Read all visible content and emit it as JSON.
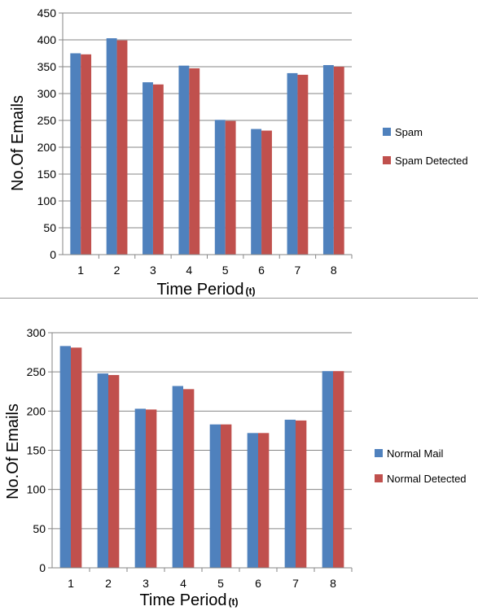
{
  "colors": {
    "series_a": "#4F81BD",
    "series_b": "#C0504D",
    "axis": "#868686",
    "grid": "#868686",
    "text": "#000000",
    "separator": "#9a9a9a"
  },
  "chart_data": [
    {
      "type": "bar",
      "categories": [
        "1",
        "2",
        "3",
        "4",
        "5",
        "6",
        "7",
        "8"
      ],
      "series": [
        {
          "name": "Spam",
          "values": [
            375,
            403,
            321,
            352,
            251,
            234,
            338,
            353
          ]
        },
        {
          "name": "Spam Detected",
          "values": [
            373,
            399,
            317,
            347,
            249,
            231,
            335,
            350
          ]
        }
      ],
      "title": "",
      "xlabel": "Time Period",
      "xlabel_suffix": "(t)",
      "ylabel": "No.Of Emails",
      "ylim": [
        0,
        450
      ],
      "yticks": [
        0,
        50,
        100,
        150,
        200,
        250,
        300,
        350,
        400,
        450
      ],
      "grid": true,
      "legend_position": "right"
    },
    {
      "type": "bar",
      "categories": [
        "1",
        "2",
        "3",
        "4",
        "5",
        "6",
        "7",
        "8"
      ],
      "series": [
        {
          "name": "Normal Mail",
          "values": [
            283,
            248,
            203,
            232,
            183,
            172,
            189,
            251
          ]
        },
        {
          "name": "Normal Detected",
          "values": [
            281,
            246,
            202,
            228,
            183,
            172,
            188,
            251
          ]
        }
      ],
      "title": "",
      "xlabel": "Time Period",
      "xlabel_suffix": "(t)",
      "ylabel": "No.Of Emails",
      "ylim": [
        0,
        300
      ],
      "yticks": [
        0,
        50,
        100,
        150,
        200,
        250,
        300
      ],
      "grid": true,
      "legend_position": "right"
    }
  ]
}
